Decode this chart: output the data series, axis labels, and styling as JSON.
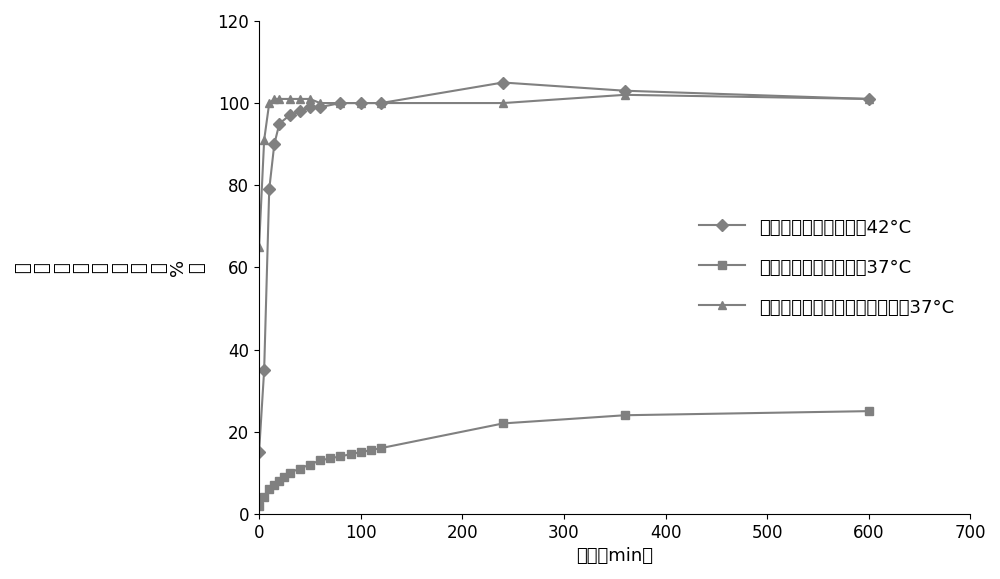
{
  "series1_label": "新型载体释放莪术醇，42°C",
  "series2_label": "新型载体释放莪术醇，37°C",
  "series3_label": "莪术醇叶酸修饰环糊精包合物，37°C",
  "series1_x": [
    0,
    5,
    10,
    15,
    20,
    30,
    40,
    50,
    60,
    80,
    100,
    120,
    240,
    360,
    600
  ],
  "series1_y": [
    15,
    35,
    79,
    90,
    95,
    97,
    98,
    99,
    99,
    100,
    100,
    100,
    105,
    103,
    101
  ],
  "series2_x": [
    0,
    5,
    10,
    15,
    20,
    25,
    30,
    40,
    50,
    60,
    70,
    80,
    90,
    100,
    110,
    120,
    240,
    360,
    600
  ],
  "series2_y": [
    2,
    4,
    6,
    7,
    8,
    9,
    10,
    11,
    12,
    13,
    13.5,
    14,
    14.5,
    15,
    15.5,
    16,
    22,
    24,
    25
  ],
  "series3_x": [
    0,
    5,
    10,
    15,
    20,
    30,
    40,
    50,
    60,
    80,
    100,
    120,
    240,
    360,
    600
  ],
  "series3_y": [
    65,
    91,
    100,
    101,
    101,
    101,
    101,
    101,
    100,
    100,
    100,
    100,
    100,
    102,
    101
  ],
  "xlabel": "时间（min）",
  "ylabel_chars": [
    "莪",
    "术",
    "醇",
    "累",
    "释",
    "放",
    "度",
    "（",
    "%",
    "）"
  ],
  "xlim": [
    0,
    700
  ],
  "ylim": [
    0,
    120
  ],
  "xticks": [
    0,
    100,
    200,
    300,
    400,
    500,
    600,
    700
  ],
  "yticks": [
    0,
    20,
    40,
    60,
    80,
    100,
    120
  ],
  "color": "#808080",
  "bg_color": "#ffffff",
  "linewidth": 1.5,
  "markersize": 6,
  "legend_fontsize": 13,
  "axis_fontsize": 13,
  "tick_fontsize": 12
}
